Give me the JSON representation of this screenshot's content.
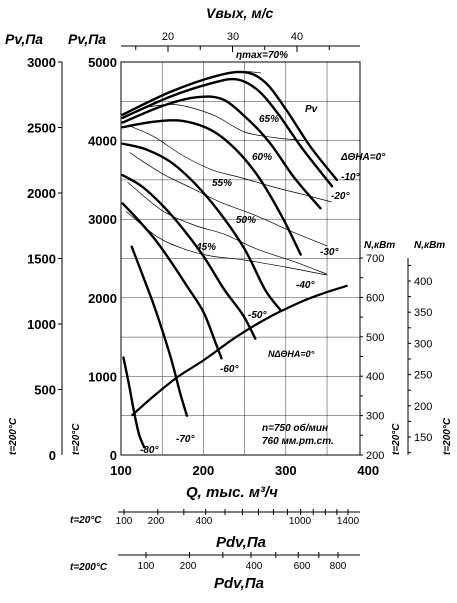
{
  "chart_data": {
    "type": "line",
    "title": "",
    "n_label": "n=750 об/мин",
    "pressure_label": "760 мм.рт.ст.",
    "top_axis": {
      "label": "Vвых, м/с",
      "ticks": [
        "20",
        "30",
        "40"
      ]
    },
    "xlabel": "Q, тыс. м³/ч",
    "x_ticks": [
      "100",
      "200",
      "300",
      "400"
    ],
    "xlim": [
      100,
      390
    ],
    "ylabel_main": "Pv,Па",
    "ylabel_main_note": "t=20°C",
    "ylim": [
      0,
      5000
    ],
    "y_ticks_main": [
      "1000",
      "2000",
      "3000",
      "4000",
      "5000"
    ],
    "ylabel_left": "Pv,Па",
    "ylabel_left_note": "t=200°C",
    "y_ticks_left": [
      "500",
      "1000",
      "1500",
      "2000",
      "2500",
      "3000"
    ],
    "power_axis_1": {
      "label": "N,кВт",
      "note": "t=20°C",
      "ticks": [
        "200",
        "300",
        "400",
        "500",
        "600",
        "700"
      ]
    },
    "power_axis_2": {
      "label": "N,кВт",
      "note": "t=200°C",
      "ticks": [
        "150",
        "200",
        "250",
        "300",
        "350",
        "400"
      ]
    },
    "dynamic_axis_1": {
      "label": "Pdv,Па",
      "note": "t=20°C",
      "ticks": [
        "100",
        "200",
        "400",
        "1000",
        "1400"
      ]
    },
    "dynamic_axis_2": {
      "label": "Pdv,Па",
      "note": "t=200°C",
      "ticks": [
        "100",
        "200",
        "400",
        "600",
        "800"
      ]
    },
    "series": [
      {
        "name": "0°",
        "label": "ΔΘНА=0°",
        "points": [
          [
            102,
            4330
          ],
          [
            160,
            4620
          ],
          [
            215,
            4820
          ],
          [
            250,
            4870
          ],
          [
            275,
            4740
          ],
          [
            300,
            4400
          ],
          [
            330,
            3920
          ],
          [
            362,
            3500
          ]
        ]
      },
      {
        "name": "-10°",
        "label": "-10°",
        "points": [
          [
            102,
            4290
          ],
          [
            160,
            4560
          ],
          [
            210,
            4730
          ],
          [
            240,
            4780
          ],
          [
            265,
            4650
          ],
          [
            290,
            4350
          ],
          [
            320,
            3900
          ],
          [
            356,
            3420
          ]
        ]
      },
      {
        "name": "-20°",
        "label": "-20°",
        "points": [
          [
            102,
            4230
          ],
          [
            150,
            4440
          ],
          [
            190,
            4550
          ],
          [
            222,
            4530
          ],
          [
            250,
            4310
          ],
          [
            280,
            3980
          ],
          [
            310,
            3530
          ],
          [
            342,
            3140
          ]
        ]
      },
      {
        "name": "-30°",
        "label": "-30°",
        "points": [
          [
            102,
            4170
          ],
          [
            140,
            4240
          ],
          [
            175,
            4250
          ],
          [
            210,
            4130
          ],
          [
            240,
            3880
          ],
          [
            268,
            3520
          ],
          [
            296,
            3020
          ],
          [
            318,
            2550
          ]
        ]
      },
      {
        "name": "-40°",
        "label": "-40°",
        "points": [
          [
            102,
            3960
          ],
          [
            130,
            3890
          ],
          [
            160,
            3730
          ],
          [
            190,
            3450
          ],
          [
            220,
            3080
          ],
          [
            250,
            2620
          ],
          [
            275,
            2100
          ],
          [
            293,
            1850
          ]
        ]
      },
      {
        "name": "-50°",
        "label": "-50°",
        "points": [
          [
            102,
            3560
          ],
          [
            125,
            3420
          ],
          [
            150,
            3180
          ],
          [
            175,
            2880
          ],
          [
            200,
            2530
          ],
          [
            225,
            2110
          ],
          [
            248,
            1780
          ],
          [
            263,
            1480
          ]
        ]
      },
      {
        "name": "-60°",
        "label": "-60°",
        "points": [
          [
            102,
            3200
          ],
          [
            120,
            3000
          ],
          [
            140,
            2760
          ],
          [
            160,
            2470
          ],
          [
            180,
            2150
          ],
          [
            200,
            1820
          ],
          [
            215,
            1420
          ],
          [
            222,
            1230
          ]
        ]
      },
      {
        "name": "-70°",
        "label": "-70°",
        "points": [
          [
            113,
            2650
          ],
          [
            125,
            2320
          ],
          [
            138,
            1960
          ],
          [
            150,
            1590
          ],
          [
            162,
            1180
          ],
          [
            172,
            780
          ],
          [
            180,
            500
          ]
        ]
      },
      {
        "name": "-80°",
        "label": "-80°",
        "points": [
          [
            103,
            1240
          ],
          [
            110,
            880
          ],
          [
            116,
            540
          ],
          [
            122,
            260
          ],
          [
            128,
            100
          ]
        ]
      }
    ],
    "efficiency_curves": [
      {
        "label": "ηmax=70%",
        "points": [
          [
            158,
            4600
          ],
          [
            190,
            4740
          ],
          [
            215,
            4830
          ],
          [
            245,
            4880
          ],
          [
            270,
            4860
          ]
        ]
      },
      {
        "label": "65%",
        "points": [
          [
            128,
            4420
          ],
          [
            160,
            4460
          ],
          [
            185,
            4420
          ],
          [
            215,
            4310
          ],
          [
            250,
            4110
          ],
          [
            285,
            4040
          ],
          [
            322,
            4000
          ]
        ]
      },
      {
        "label": "60%",
        "points": [
          [
            112,
            4180
          ],
          [
            140,
            4050
          ],
          [
            175,
            3810
          ],
          [
            210,
            3630
          ],
          [
            245,
            3530
          ],
          [
            285,
            3410
          ],
          [
            330,
            3290
          ],
          [
            355,
            3220
          ]
        ]
      },
      {
        "label": "55%",
        "points": [
          [
            110,
            3850
          ],
          [
            150,
            3580
          ],
          [
            185,
            3400
          ],
          [
            220,
            3220
          ],
          [
            265,
            3040
          ],
          [
            310,
            2830
          ],
          [
            350,
            2660
          ]
        ]
      },
      {
        "label": "50%",
        "points": [
          [
            108,
            3470
          ],
          [
            150,
            3110
          ],
          [
            190,
            2920
          ],
          [
            225,
            2810
          ],
          [
            265,
            2620
          ],
          [
            310,
            2460
          ],
          [
            350,
            2300
          ]
        ]
      },
      {
        "label": "45%",
        "points": [
          [
            106,
            3100
          ],
          [
            145,
            2770
          ],
          [
            180,
            2610
          ],
          [
            210,
            2530
          ],
          [
            250,
            2480
          ],
          [
            300,
            2390
          ],
          [
            350,
            2290
          ]
        ]
      }
    ],
    "power_curve": {
      "label": "NΔΘНА=0°",
      "points": [
        [
          113,
          300
        ],
        [
          140,
          350
        ],
        [
          170,
          400
        ],
        [
          200,
          440
        ],
        [
          240,
          500
        ],
        [
          280,
          550
        ],
        [
          320,
          590
        ],
        [
          345,
          610
        ],
        [
          375,
          630
        ]
      ]
    },
    "y_tick_values_main": [
      1000,
      2000,
      3000,
      4000,
      5000
    ],
    "x_tick_values": [
      100,
      200,
      300,
      400
    ],
    "y_tick_values_left": [
      500,
      1000,
      1500,
      2000,
      2500,
      3000
    ],
    "power_tick_values": [
      200,
      300,
      400,
      500,
      600,
      700
    ],
    "power2_tick_values": [
      150,
      200,
      250,
      300,
      350,
      400
    ],
    "top_tick_values": [
      20,
      30,
      40
    ],
    "dyn1_tick_values": [
      100,
      200,
      400,
      1000,
      1400
    ],
    "dyn2_tick_values": [
      100,
      200,
      400,
      600,
      800
    ]
  }
}
